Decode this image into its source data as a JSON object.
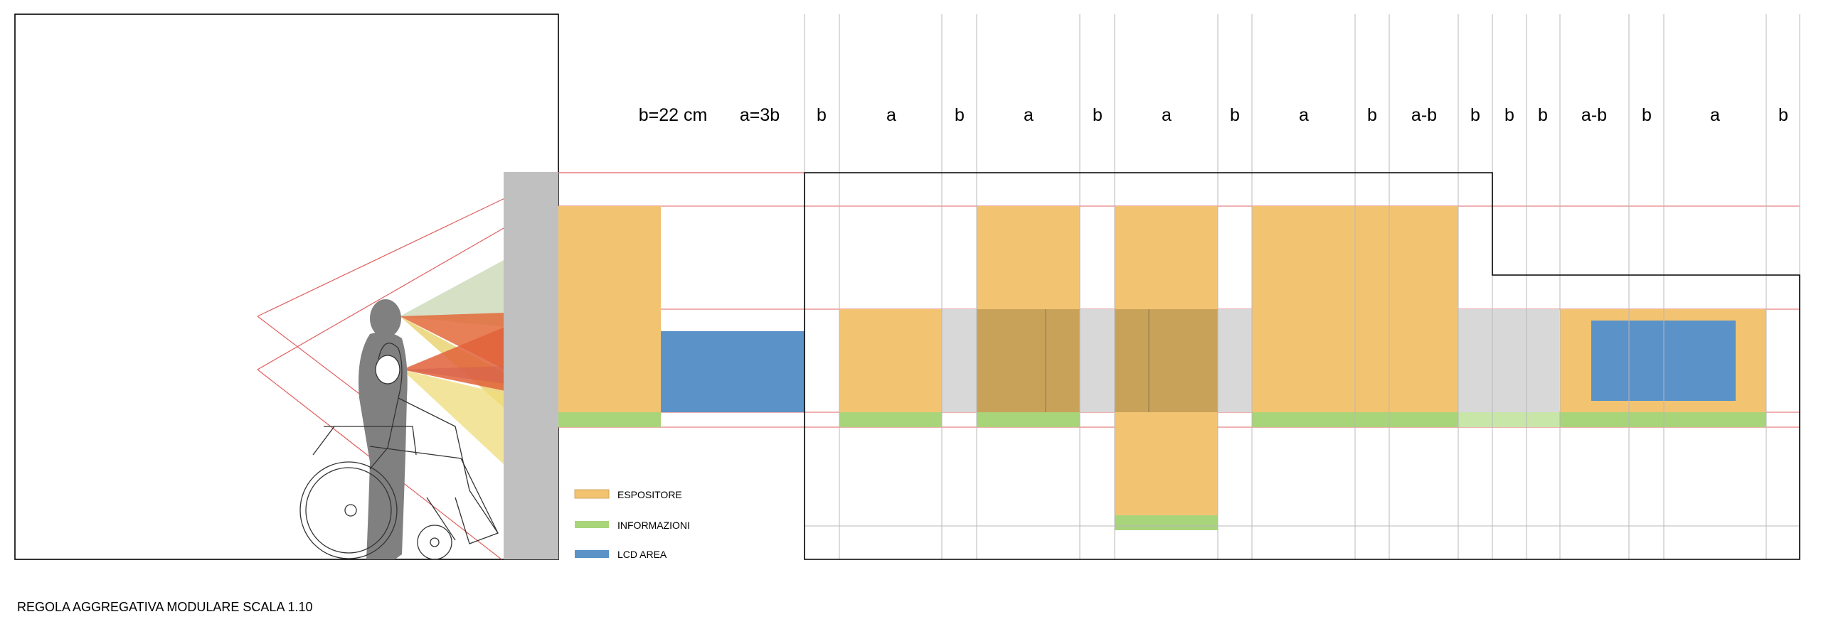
{
  "colors": {
    "espositore": "#f2c472",
    "informazioni": "#a8d47a",
    "lcd": "#5b92c8",
    "wall": "#c0c0c0",
    "overlap_gray": "#d8d8d8",
    "overlap_dark": "#c9a25a",
    "grid": "#b8b8b8",
    "red": "#e06060",
    "silhouette": "#808080"
  },
  "labels": {
    "b_value": "b=22 cm",
    "a_value": "a=3b"
  },
  "module_sequence": [
    "b",
    "a",
    "b",
    "a",
    "b",
    "a",
    "b",
    "a",
    "b",
    "a-b",
    "b",
    "b",
    "b",
    "a-b",
    "b",
    "a",
    "b"
  ],
  "legend": [
    {
      "label": "ESPOSITORE",
      "color_key": "espositore"
    },
    {
      "label": "INFORMAZIONI",
      "color_key": "informazioni"
    },
    {
      "label": "LCD AREA",
      "color_key": "lcd"
    }
  ],
  "diagram_title": "REGOLA AGGREGATIVA MODULARE SCALA 1.10",
  "icons": [
    "standing-person-silhouette",
    "wheelchair-user-figure",
    "viewing-cone"
  ]
}
